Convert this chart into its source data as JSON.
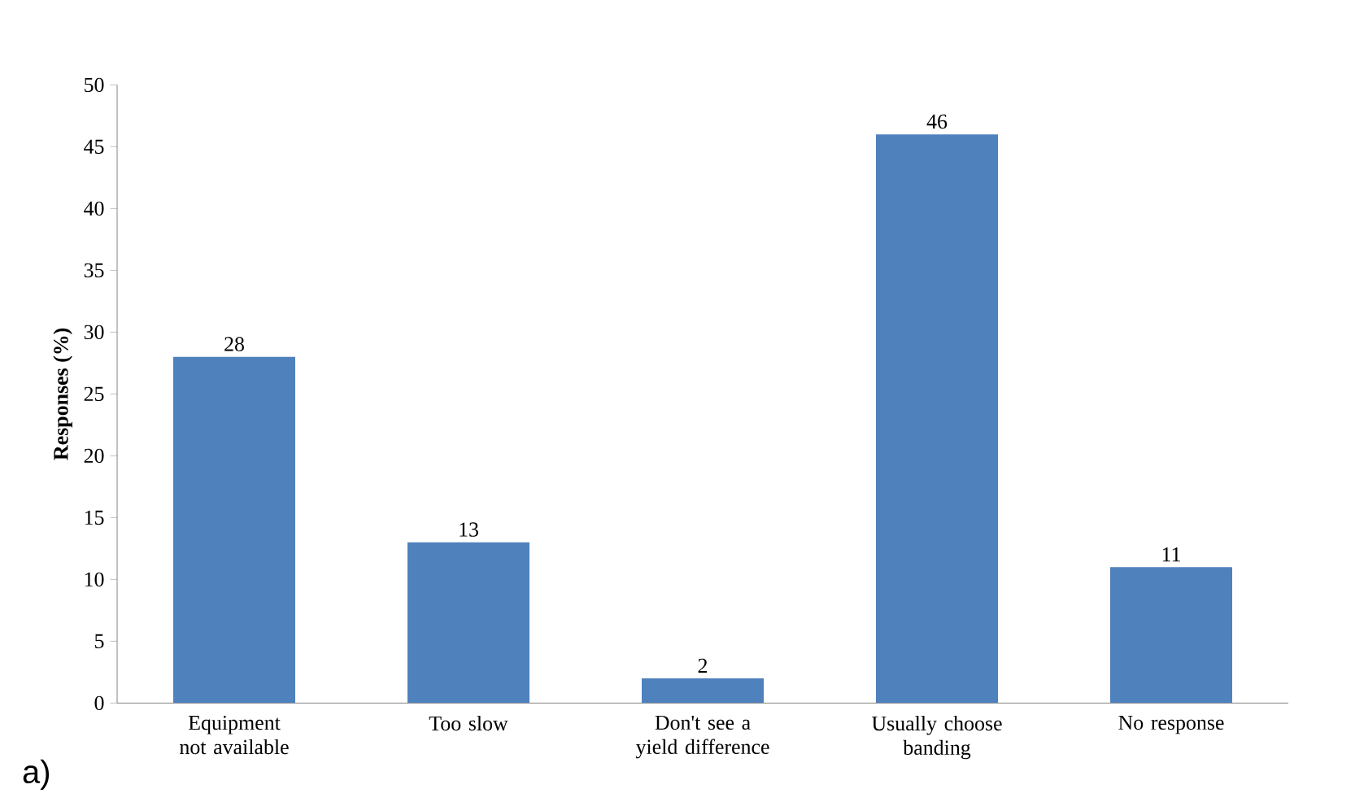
{
  "chart_data": {
    "type": "bar",
    "ylabel": "Responses (%)",
    "categories": [
      "Equipment not available",
      "Too slow",
      "Don't see a yield difference",
      "Usually choose banding",
      "No response"
    ],
    "values": [
      28,
      13,
      2,
      46,
      11
    ],
    "color": "#4f81bd",
    "ylim": [
      0,
      50
    ],
    "yticks": [
      0,
      5,
      10,
      15,
      20,
      25,
      30,
      35,
      40,
      45,
      50
    ],
    "grid": false,
    "data_labels": true,
    "annotations": [
      "a)"
    ]
  }
}
